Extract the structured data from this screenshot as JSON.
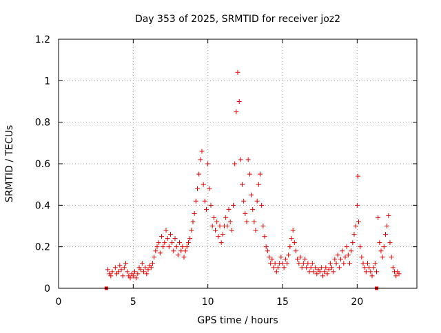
{
  "chart_data": {
    "type": "scatter",
    "title": "Day 353 of 2025, SRMTID for receiver joz2",
    "xlabel": "GPS time / hours",
    "ylabel": "SRMTID / TECUs",
    "xlim": [
      0,
      24
    ],
    "ylim": [
      0,
      1.2
    ],
    "xticks": [
      0,
      5,
      10,
      15,
      20
    ],
    "yticks": [
      0,
      0.2,
      0.4,
      0.6,
      0.8,
      1,
      1.2
    ],
    "xtick_labels": [
      "0",
      "5",
      "10",
      "15",
      "20"
    ],
    "ytick_labels": [
      "0",
      "0.2",
      "0.4",
      "0.6",
      "0.8",
      "1",
      "1.2"
    ],
    "grid": true,
    "marker": "plus",
    "color": "#e00000",
    "series": [
      {
        "name": "SRMTID",
        "points": [
          [
            3.3,
            0.09
          ],
          [
            3.4,
            0.07
          ],
          [
            3.5,
            0.06
          ],
          [
            3.6,
            0.08
          ],
          [
            3.8,
            0.1
          ],
          [
            3.9,
            0.07
          ],
          [
            4.0,
            0.08
          ],
          [
            4.1,
            0.11
          ],
          [
            4.2,
            0.09
          ],
          [
            4.3,
            0.06
          ],
          [
            4.4,
            0.1
          ],
          [
            4.5,
            0.12
          ],
          [
            4.6,
            0.08
          ],
          [
            4.7,
            0.06
          ],
          [
            4.8,
            0.05
          ],
          [
            4.9,
            0.07
          ],
          [
            5.0,
            0.06
          ],
          [
            5.1,
            0.08
          ],
          [
            5.2,
            0.05
          ],
          [
            5.3,
            0.07
          ],
          [
            5.4,
            0.1
          ],
          [
            5.5,
            0.09
          ],
          [
            5.6,
            0.12
          ],
          [
            5.7,
            0.08
          ],
          [
            5.8,
            0.1
          ],
          [
            5.9,
            0.07
          ],
          [
            6.0,
            0.09
          ],
          [
            6.1,
            0.11
          ],
          [
            6.2,
            0.1
          ],
          [
            6.3,
            0.12
          ],
          [
            6.4,
            0.15
          ],
          [
            6.5,
            0.18
          ],
          [
            6.6,
            0.2
          ],
          [
            6.7,
            0.22
          ],
          [
            6.8,
            0.17
          ],
          [
            6.9,
            0.25
          ],
          [
            7.0,
            0.2
          ],
          [
            7.1,
            0.22
          ],
          [
            7.2,
            0.28
          ],
          [
            7.3,
            0.24
          ],
          [
            7.4,
            0.2
          ],
          [
            7.5,
            0.26
          ],
          [
            7.6,
            0.22
          ],
          [
            7.7,
            0.18
          ],
          [
            7.8,
            0.24
          ],
          [
            7.9,
            0.2
          ],
          [
            8.0,
            0.16
          ],
          [
            8.1,
            0.22
          ],
          [
            8.2,
            0.18
          ],
          [
            8.3,
            0.2
          ],
          [
            8.4,
            0.15
          ],
          [
            8.5,
            0.18
          ],
          [
            8.6,
            0.2
          ],
          [
            8.7,
            0.22
          ],
          [
            8.8,
            0.24
          ],
          [
            8.9,
            0.28
          ],
          [
            9.0,
            0.32
          ],
          [
            9.1,
            0.36
          ],
          [
            9.2,
            0.42
          ],
          [
            9.3,
            0.48
          ],
          [
            9.4,
            0.55
          ],
          [
            9.5,
            0.62
          ],
          [
            9.6,
            0.66
          ],
          [
            9.7,
            0.5
          ],
          [
            9.8,
            0.42
          ],
          [
            9.9,
            0.38
          ],
          [
            10.0,
            0.6
          ],
          [
            10.1,
            0.48
          ],
          [
            10.2,
            0.4
          ],
          [
            10.3,
            0.3
          ],
          [
            10.4,
            0.34
          ],
          [
            10.5,
            0.28
          ],
          [
            10.6,
            0.32
          ],
          [
            10.7,
            0.25
          ],
          [
            10.8,
            0.3
          ],
          [
            10.9,
            0.22
          ],
          [
            11.0,
            0.26
          ],
          [
            11.1,
            0.3
          ],
          [
            11.2,
            0.34
          ],
          [
            11.3,
            0.3
          ],
          [
            11.4,
            0.38
          ],
          [
            11.5,
            0.32
          ],
          [
            11.6,
            0.28
          ],
          [
            11.7,
            0.4
          ],
          [
            11.8,
            0.6
          ],
          [
            11.9,
            0.85
          ],
          [
            12.0,
            1.04
          ],
          [
            12.1,
            0.9
          ],
          [
            12.2,
            0.62
          ],
          [
            12.3,
            0.5
          ],
          [
            12.4,
            0.42
          ],
          [
            12.5,
            0.36
          ],
          [
            12.6,
            0.32
          ],
          [
            12.7,
            0.62
          ],
          [
            12.8,
            0.55
          ],
          [
            12.9,
            0.45
          ],
          [
            13.0,
            0.38
          ],
          [
            13.1,
            0.32
          ],
          [
            13.2,
            0.28
          ],
          [
            13.3,
            0.42
          ],
          [
            13.4,
            0.5
          ],
          [
            13.5,
            0.55
          ],
          [
            13.6,
            0.4
          ],
          [
            13.7,
            0.3
          ],
          [
            13.8,
            0.25
          ],
          [
            13.9,
            0.2
          ],
          [
            14.0,
            0.18
          ],
          [
            14.1,
            0.15
          ],
          [
            14.2,
            0.12
          ],
          [
            14.3,
            0.14
          ],
          [
            14.4,
            0.1
          ],
          [
            14.5,
            0.12
          ],
          [
            14.6,
            0.08
          ],
          [
            14.7,
            0.1
          ],
          [
            14.8,
            0.12
          ],
          [
            14.9,
            0.15
          ],
          [
            15.0,
            0.12
          ],
          [
            15.1,
            0.1
          ],
          [
            15.2,
            0.14
          ],
          [
            15.3,
            0.12
          ],
          [
            15.4,
            0.16
          ],
          [
            15.5,
            0.2
          ],
          [
            15.6,
            0.24
          ],
          [
            15.7,
            0.28
          ],
          [
            15.8,
            0.22
          ],
          [
            15.9,
            0.18
          ],
          [
            16.0,
            0.14
          ],
          [
            16.1,
            0.12
          ],
          [
            16.2,
            0.15
          ],
          [
            16.3,
            0.1
          ],
          [
            16.4,
            0.12
          ],
          [
            16.5,
            0.14
          ],
          [
            16.6,
            0.1
          ],
          [
            16.7,
            0.12
          ],
          [
            16.8,
            0.08
          ],
          [
            16.9,
            0.1
          ],
          [
            17.0,
            0.12
          ],
          [
            17.1,
            0.08
          ],
          [
            17.2,
            0.1
          ],
          [
            17.3,
            0.07
          ],
          [
            17.4,
            0.09
          ],
          [
            17.5,
            0.08
          ],
          [
            17.6,
            0.1
          ],
          [
            17.7,
            0.06
          ],
          [
            17.8,
            0.08
          ],
          [
            17.9,
            0.1
          ],
          [
            18.0,
            0.07
          ],
          [
            18.1,
            0.09
          ],
          [
            18.2,
            0.12
          ],
          [
            18.3,
            0.1
          ],
          [
            18.4,
            0.08
          ],
          [
            18.5,
            0.14
          ],
          [
            18.6,
            0.12
          ],
          [
            18.7,
            0.16
          ],
          [
            18.8,
            0.1
          ],
          [
            18.9,
            0.14
          ],
          [
            19.0,
            0.18
          ],
          [
            19.1,
            0.12
          ],
          [
            19.2,
            0.15
          ],
          [
            19.3,
            0.2
          ],
          [
            19.4,
            0.16
          ],
          [
            19.5,
            0.12
          ],
          [
            19.6,
            0.18
          ],
          [
            19.7,
            0.22
          ],
          [
            19.8,
            0.26
          ],
          [
            19.9,
            0.3
          ],
          [
            20.0,
            0.4
          ],
          [
            20.05,
            0.54
          ],
          [
            20.1,
            0.32
          ],
          [
            20.2,
            0.2
          ],
          [
            20.3,
            0.15
          ],
          [
            20.4,
            0.12
          ],
          [
            20.5,
            0.1
          ],
          [
            20.6,
            0.08
          ],
          [
            20.7,
            0.12
          ],
          [
            20.8,
            0.1
          ],
          [
            20.9,
            0.08
          ],
          [
            21.0,
            0.06
          ],
          [
            21.1,
            0.1
          ],
          [
            21.2,
            0.12
          ],
          [
            21.3,
            0.08
          ],
          [
            21.4,
            0.34
          ],
          [
            21.5,
            0.22
          ],
          [
            21.6,
            0.18
          ],
          [
            21.7,
            0.15
          ],
          [
            21.8,
            0.2
          ],
          [
            21.9,
            0.26
          ],
          [
            22.0,
            0.3
          ],
          [
            22.1,
            0.35
          ],
          [
            22.2,
            0.22
          ],
          [
            22.3,
            0.15
          ],
          [
            22.4,
            0.1
          ],
          [
            22.5,
            0.08
          ],
          [
            22.6,
            0.06
          ],
          [
            22.7,
            0.08
          ],
          [
            22.8,
            0.07
          ]
        ]
      }
    ],
    "boundary_markers": [
      [
        3.2,
        0
      ],
      [
        21.3,
        0
      ]
    ]
  }
}
